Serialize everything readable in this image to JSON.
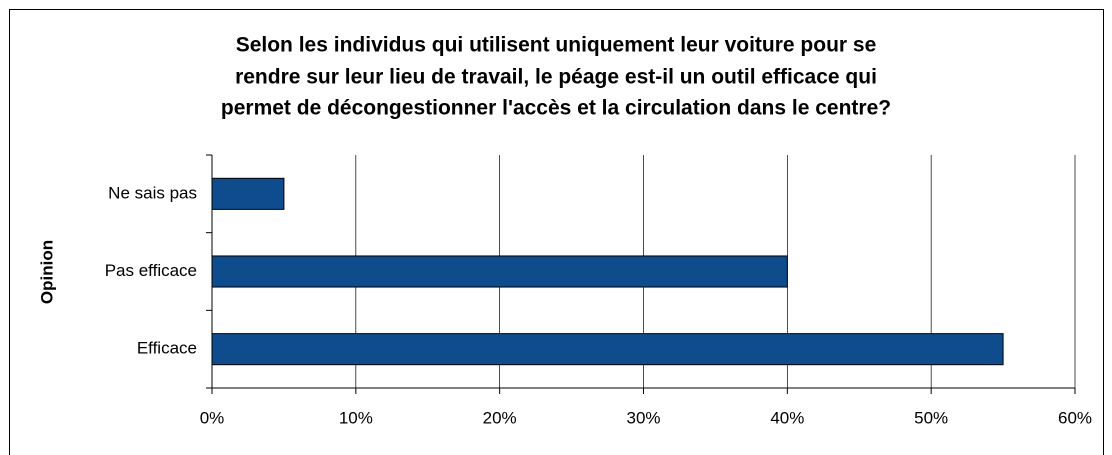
{
  "chart_data": {
    "type": "bar",
    "orientation": "horizontal",
    "title": [
      "Selon les individus qui utilisent uniquement leur voiture pour se",
      "rendre sur leur lieu de travail, le péage est-il un outil efficace qui",
      "permet de décongestionner l'accès et la circulation dans le centre?"
    ],
    "y_label": "Opinion",
    "categories": [
      "Ne sais pas",
      "Pas efficace",
      "Efficace"
    ],
    "values": [
      5,
      40,
      55
    ],
    "color": "#0f4c8e",
    "xlim": [
      0,
      60
    ],
    "xticks": [
      {
        "value": 0,
        "label": "0%"
      },
      {
        "value": 10,
        "label": "10%"
      },
      {
        "value": 20,
        "label": "20%"
      },
      {
        "value": 30,
        "label": "30%"
      },
      {
        "value": 40,
        "label": "40%"
      },
      {
        "value": 50,
        "label": "50%"
      },
      {
        "value": 60,
        "label": "60%"
      }
    ],
    "grid": true
  }
}
